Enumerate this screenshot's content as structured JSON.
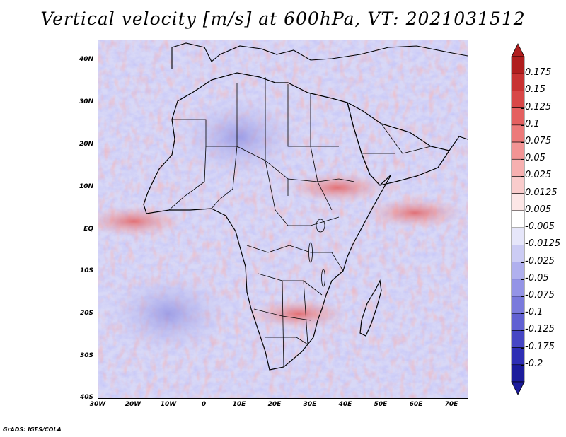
{
  "title": "Vertical velocity [m/s] at 600hPa, VT: 2021031512",
  "credit": "GrADS: IGES/COLA",
  "axes": {
    "lat_labels": [
      "40N",
      "30N",
      "20N",
      "10N",
      "EQ",
      "10S",
      "20S",
      "30S",
      "40S"
    ],
    "lon_labels": [
      "30W",
      "20W",
      "10W",
      "0",
      "10E",
      "20E",
      "30E",
      "40E",
      "50E",
      "60E",
      "70E"
    ]
  },
  "map_extent": {
    "lon_min": -30,
    "lon_max": 75,
    "lat_min": -40,
    "lat_max": 45
  },
  "colorbar": {
    "labels": [
      "0.175",
      "0.15",
      "0.125",
      "0.1",
      "0.075",
      "0.05",
      "0.025",
      "0.0125",
      "0.005",
      "-0.005",
      "-0.0125",
      "-0.025",
      "-0.05",
      "-0.075",
      "-0.1",
      "-0.125",
      "-0.175",
      "-0.2"
    ],
    "colors": [
      "#b01e1e",
      "#c83232",
      "#d84848",
      "#e46060",
      "#ec7a7a",
      "#f29494",
      "#f6b0b0",
      "#f9cccc",
      "#fce6e6",
      "#ffffff",
      "#e6e6fa",
      "#ccccf4",
      "#b0b0ee",
      "#9494e6",
      "#7a7adc",
      "#6060d2",
      "#4646c4",
      "#2e2eb4",
      "#1c1c9c"
    ]
  },
  "regions": [
    {
      "name": "upward-motion-equatorial-atlantic",
      "lon": -20,
      "lat": 2,
      "sign": "up"
    },
    {
      "name": "upward-motion-ethiopian-highlands",
      "lon": 38,
      "lat": 10,
      "sign": "up"
    },
    {
      "name": "upward-motion-southern-africa",
      "lon": 27,
      "lat": -20,
      "sign": "up"
    },
    {
      "name": "upward-motion-equatorial-indian-ocean",
      "lon": 60,
      "lat": 4,
      "sign": "up"
    },
    {
      "name": "subsidence-south-atlantic",
      "lon": -10,
      "lat": -20,
      "sign": "down"
    },
    {
      "name": "subsidence-sahara",
      "lon": 10,
      "lat": 22,
      "sign": "down"
    }
  ]
}
